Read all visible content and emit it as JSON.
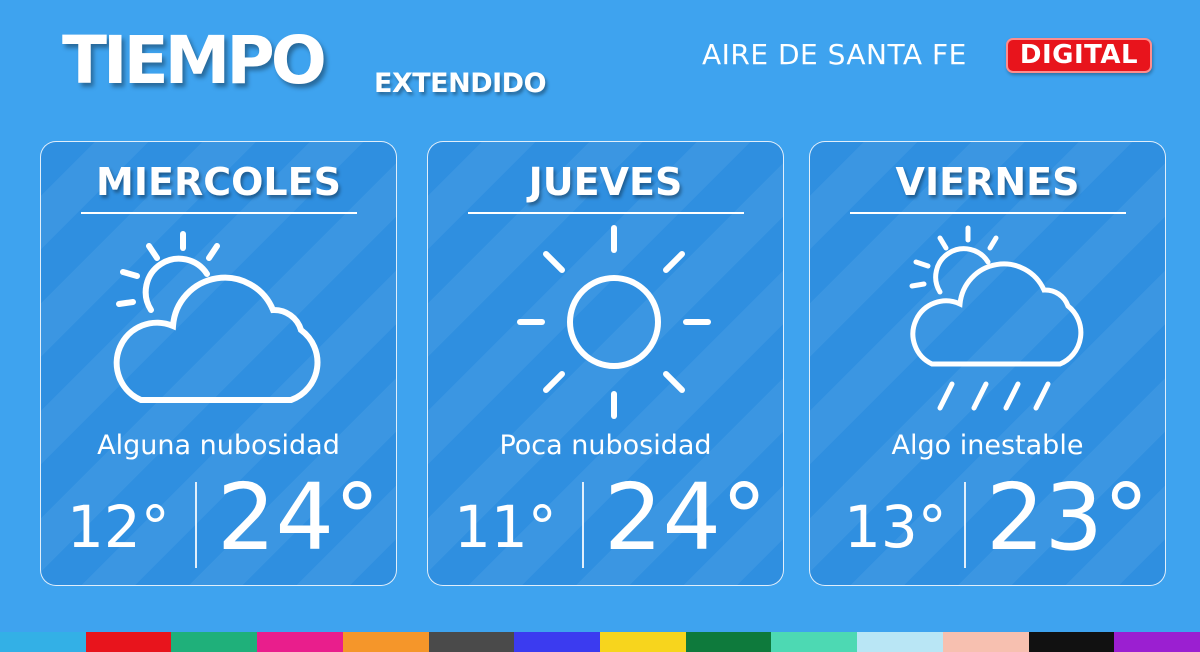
{
  "header": {
    "title": "TIEMPO",
    "subtitle": "EXTENDIDO",
    "brand": "AIRE DE SANTA FE",
    "badge": "DIGITAL",
    "badge_color": "#e8141c"
  },
  "days": [
    {
      "name": "MIERCOLES",
      "description": "Alguna nubosidad",
      "min": "12°",
      "max": "24°",
      "icon": "partly-cloudy-icon"
    },
    {
      "name": "JUEVES",
      "description": "Poca nubosidad",
      "min": "11°",
      "max": "24°",
      "icon": "sun-icon"
    },
    {
      "name": "VIERNES",
      "description": "Algo inestable",
      "min": "13°",
      "max": "23°",
      "icon": "partly-cloudy-rain-icon"
    }
  ],
  "colors": {
    "background": "#3ea3ef",
    "card": "#2f8fe0"
  },
  "stripe_colors": [
    "#33b0e6",
    "#e8141c",
    "#1fb07a",
    "#e91e8c",
    "#f5962a",
    "#4a4a4a",
    "#3b3bf0",
    "#f7d51d",
    "#0e7a3c",
    "#4dd9b3",
    "#b9e6f5",
    "#f7c0b0",
    "#111111",
    "#9b1fd1"
  ]
}
